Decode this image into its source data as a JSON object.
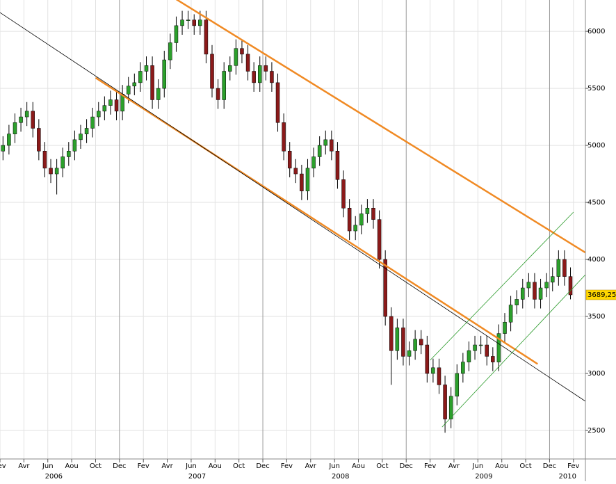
{
  "chart_data": {
    "type": "candlestick",
    "up_color": "#2ca02c",
    "down_color": "#8b1a1a",
    "grid": true,
    "xlim": [
      "2006-02",
      "2010-03"
    ],
    "ylim": [
      2250,
      6275
    ],
    "yticks": [
      2500,
      3000,
      3500,
      4000,
      4500,
      5000,
      5500,
      6000
    ],
    "xticks": [
      {
        "value": "2006-02",
        "label": "Fev"
      },
      {
        "value": "2006-04",
        "label": "Avr"
      },
      {
        "value": "2006-06",
        "label": "Jun"
      },
      {
        "value": "2006-08",
        "label": "Aou"
      },
      {
        "value": "2006-10",
        "label": "Oct"
      },
      {
        "value": "2006-12",
        "label": "Dec"
      },
      {
        "value": "2007-02",
        "label": "Fev"
      },
      {
        "value": "2007-04",
        "label": "Avr"
      },
      {
        "value": "2007-06",
        "label": "Jun"
      },
      {
        "value": "2007-08",
        "label": "Aou"
      },
      {
        "value": "2007-10",
        "label": "Oct"
      },
      {
        "value": "2007-12",
        "label": "Dec"
      },
      {
        "value": "2008-02",
        "label": "Fev"
      },
      {
        "value": "2008-04",
        "label": "Avr"
      },
      {
        "value": "2008-06",
        "label": "Jun"
      },
      {
        "value": "2008-08",
        "label": "Aou"
      },
      {
        "value": "2008-10",
        "label": "Oct"
      },
      {
        "value": "2008-12",
        "label": "Dec"
      },
      {
        "value": "2009-02",
        "label": "Fev"
      },
      {
        "value": "2009-04",
        "label": "Avr"
      },
      {
        "value": "2009-06",
        "label": "Jun"
      },
      {
        "value": "2009-08",
        "label": "Aou"
      },
      {
        "value": "2009-10",
        "label": "Oct"
      },
      {
        "value": "2009-12",
        "label": "Dec"
      },
      {
        "value": "2010-02",
        "label": "Fev"
      }
    ],
    "year_labels": [
      {
        "value": "2006-06",
        "label": "2006"
      },
      {
        "value": "2007-06",
        "label": "2007"
      },
      {
        "value": "2008-06",
        "label": "2008"
      },
      {
        "value": "2009-06",
        "label": "2009"
      },
      {
        "value": "2010-01",
        "label": "2010"
      }
    ],
    "last_price": {
      "value": 3689.25,
      "label": "3689,25",
      "color": "#ffd700"
    },
    "lines": [
      {
        "color": "#f08a24",
        "width": 2.5,
        "start": [
          "2007-04",
          6330
        ],
        "end": [
          "2010-03",
          4060
        ]
      },
      {
        "color": "#f08a24",
        "width": 2.5,
        "start": [
          "2006-10",
          5593
        ],
        "end": [
          "2009-11",
          3083
        ]
      },
      {
        "color": "#000000",
        "width": 0.8,
        "start": [
          "2006-02",
          6165
        ],
        "end": [
          "2010-03",
          2756
        ]
      },
      {
        "color": "#2a9a2a",
        "width": 0.8,
        "start": [
          "2009-02",
          3116
        ],
        "end": [
          "2010-02",
          4415
        ]
      },
      {
        "color": "#2a9a2a",
        "width": 0.8,
        "start": [
          "2009-03",
          2530
        ],
        "end": [
          "2010-03",
          3866
        ]
      }
    ],
    "candles": {
      "x": [
        "2006-02",
        "2006-02",
        "2006-03",
        "2006-03",
        "2006-04",
        "2006-04",
        "2006-05",
        "2006-05",
        "2006-06",
        "2006-06",
        "2006-07",
        "2006-07",
        "2006-08",
        "2006-08",
        "2006-09",
        "2006-09",
        "2006-10",
        "2006-10",
        "2006-11",
        "2006-11",
        "2006-12",
        "2006-12",
        "2007-01",
        "2007-01",
        "2007-02",
        "2007-02",
        "2007-03",
        "2007-03",
        "2007-04",
        "2007-04",
        "2007-05",
        "2007-05",
        "2007-06",
        "2007-06",
        "2007-07",
        "2007-07",
        "2007-08",
        "2007-08",
        "2007-09",
        "2007-09",
        "2007-10",
        "2007-10",
        "2007-11",
        "2007-11",
        "2007-12",
        "2007-12",
        "2008-01",
        "2008-01",
        "2008-02",
        "2008-02",
        "2008-03",
        "2008-03",
        "2008-04",
        "2008-04",
        "2008-05",
        "2008-05",
        "2008-06",
        "2008-06",
        "2008-07",
        "2008-07",
        "2008-08",
        "2008-08",
        "2008-09",
        "2008-09",
        "2008-10",
        "2008-10",
        "2008-11",
        "2008-11",
        "2008-12",
        "2008-12",
        "2009-01",
        "2009-01",
        "2009-02",
        "2009-02",
        "2009-03",
        "2009-03",
        "2009-04",
        "2009-04",
        "2009-05",
        "2009-05",
        "2009-06",
        "2009-06",
        "2009-07",
        "2009-07",
        "2009-08",
        "2009-08",
        "2009-09",
        "2009-09",
        "2009-10",
        "2009-10",
        "2009-11",
        "2009-11",
        "2009-12",
        "2009-12",
        "2010-01",
        "2010-01"
      ],
      "open": [
        4950,
        5000,
        5100,
        5200,
        5250,
        5300,
        5150,
        4950,
        4800,
        4750,
        4800,
        4900,
        4950,
        5050,
        5100,
        5150,
        5250,
        5300,
        5350,
        5400,
        5300,
        5450,
        5520,
        5550,
        5650,
        5700,
        5400,
        5500,
        5750,
        5900,
        6050,
        6100,
        6100,
        6050,
        6100,
        5800,
        5500,
        5400,
        5650,
        5700,
        5850,
        5800,
        5650,
        5550,
        5700,
        5650,
        5550,
        5200,
        4950,
        4800,
        4750,
        4600,
        4800,
        4900,
        5000,
        5050,
        4950,
        4700,
        4450,
        4250,
        4300,
        4400,
        4450,
        4350,
        4000,
        3500,
        3200,
        3400,
        3150,
        3200,
        3300,
        3250,
        3000,
        3050,
        2900,
        2600,
        2800,
        3000,
        3100,
        3200,
        3250,
        3250,
        3150,
        3100,
        3350,
        3450,
        3600,
        3650,
        3750,
        3800,
        3650,
        3750,
        3800,
        3850,
        4000,
        3850
      ],
      "high": [
        5080,
        5180,
        5280,
        5330,
        5380,
        5380,
        5230,
        5030,
        4880,
        4880,
        4980,
        5030,
        5130,
        5180,
        5230,
        5330,
        5380,
        5430,
        5480,
        5480,
        5530,
        5600,
        5630,
        5730,
        5780,
        5780,
        5580,
        5830,
        5980,
        6130,
        6180,
        6180,
        6150,
        6180,
        6180,
        5880,
        5580,
        5730,
        5780,
        5930,
        5930,
        5880,
        5730,
        5780,
        5780,
        5730,
        5630,
        5280,
        5030,
        4880,
        4830,
        4880,
        4980,
        5080,
        5130,
        5130,
        5030,
        4780,
        4530,
        4380,
        4480,
        4530,
        4530,
        4430,
        4080,
        3580,
        3480,
        3480,
        3280,
        3380,
        3380,
        3330,
        3130,
        3130,
        2980,
        2880,
        3080,
        3180,
        3280,
        3330,
        3330,
        3330,
        3230,
        3430,
        3530,
        3680,
        3730,
        3830,
        3880,
        3880,
        3830,
        3880,
        3930,
        4080,
        4080,
        3930
      ],
      "low": [
        4870,
        4920,
        5020,
        5120,
        5170,
        5070,
        4870,
        4720,
        4670,
        4570,
        4720,
        4820,
        4870,
        4970,
        5020,
        5070,
        5170,
        5220,
        5270,
        5220,
        5220,
        5370,
        5440,
        5470,
        5570,
        5320,
        5320,
        5420,
        5670,
        5820,
        5970,
        6020,
        5970,
        5970,
        5720,
        5420,
        5320,
        5320,
        5570,
        5620,
        5720,
        5570,
        5470,
        5470,
        5570,
        5470,
        5120,
        4870,
        4720,
        4670,
        4520,
        4520,
        4720,
        4820,
        4920,
        4870,
        4620,
        4370,
        4170,
        4170,
        4220,
        4320,
        4270,
        3920,
        3420,
        2900,
        3120,
        3070,
        3070,
        3120,
        3170,
        2920,
        2920,
        2820,
        2480,
        2520,
        2720,
        2920,
        3020,
        3120,
        3170,
        3070,
        3020,
        3020,
        3270,
        3370,
        3520,
        3570,
        3670,
        3570,
        3570,
        3670,
        3720,
        3770,
        3770,
        3650
      ],
      "close": [
        5000,
        5100,
        5200,
        5250,
        5300,
        5150,
        4950,
        4800,
        4750,
        4800,
        4900,
        4950,
        5050,
        5100,
        5150,
        5250,
        5300,
        5350,
        5400,
        5300,
        5450,
        5520,
        5550,
        5650,
        5700,
        5400,
        5500,
        5750,
        5900,
        6050,
        6100,
        6100,
        6050,
        6100,
        5800,
        5500,
        5400,
        5650,
        5700,
        5850,
        5800,
        5650,
        5550,
        5700,
        5650,
        5550,
        5200,
        4950,
        4800,
        4750,
        4600,
        4800,
        4900,
        5000,
        5050,
        4950,
        4700,
        4450,
        4250,
        4300,
        4400,
        4450,
        4350,
        4000,
        3500,
        3200,
        3400,
        3150,
        3200,
        3300,
        3250,
        3000,
        3050,
        2900,
        2600,
        2800,
        3000,
        3100,
        3200,
        3250,
        3250,
        3150,
        3100,
        3350,
        3450,
        3600,
        3650,
        3750,
        3800,
        3650,
        3750,
        3800,
        3850,
        4000,
        3850,
        3689.25
      ]
    }
  }
}
